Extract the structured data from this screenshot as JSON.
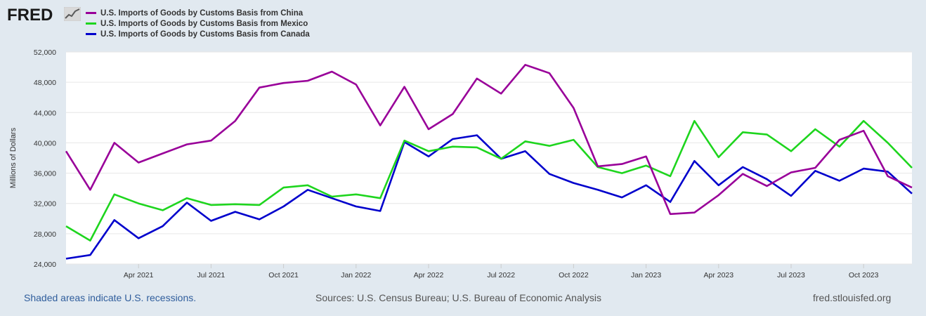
{
  "brand": {
    "logo_text": "FRED"
  },
  "legend": [
    {
      "label": "U.S. Imports of Goods by Customs Basis from China",
      "color": "#990099"
    },
    {
      "label": "U.S. Imports of Goods by Customs Basis from Mexico",
      "color": "#1ed51e"
    },
    {
      "label": "U.S. Imports of Goods by Customs Basis from Canada",
      "color": "#0000cc"
    }
  ],
  "footer": {
    "recessions_note": "Shaded areas indicate U.S. recessions.",
    "sources": "Sources: U.S. Census Bureau; U.S. Bureau of Economic Analysis",
    "site": "fred.stlouisfed.org"
  },
  "chart_data": {
    "type": "line",
    "title": "",
    "xlabel": "",
    "ylabel": "Millions of Dollars",
    "ylim": [
      24000,
      52000
    ],
    "yticks": [
      24000,
      28000,
      32000,
      36000,
      40000,
      44000,
      48000,
      52000
    ],
    "ytick_labels": [
      "24,000",
      "28,000",
      "32,000",
      "36,000",
      "40,000",
      "44,000",
      "48,000",
      "52,000"
    ],
    "x": [
      "2021-01",
      "2021-02",
      "2021-03",
      "2021-04",
      "2021-05",
      "2021-06",
      "2021-07",
      "2021-08",
      "2021-09",
      "2021-10",
      "2021-11",
      "2021-12",
      "2022-01",
      "2022-02",
      "2022-03",
      "2022-04",
      "2022-05",
      "2022-06",
      "2022-07",
      "2022-08",
      "2022-09",
      "2022-10",
      "2022-11",
      "2022-12",
      "2023-01",
      "2023-02",
      "2023-03",
      "2023-04",
      "2023-05",
      "2023-06",
      "2023-07",
      "2023-08",
      "2023-09",
      "2023-10",
      "2023-11",
      "2023-12"
    ],
    "xticks": [
      {
        "index": 3,
        "label": "Apr 2021"
      },
      {
        "index": 6,
        "label": "Jul 2021"
      },
      {
        "index": 9,
        "label": "Oct 2021"
      },
      {
        "index": 12,
        "label": "Jan 2022"
      },
      {
        "index": 15,
        "label": "Apr 2022"
      },
      {
        "index": 18,
        "label": "Jul 2022"
      },
      {
        "index": 21,
        "label": "Oct 2022"
      },
      {
        "index": 24,
        "label": "Jan 2023"
      },
      {
        "index": 27,
        "label": "Apr 2023"
      },
      {
        "index": 30,
        "label": "Jul 2023"
      },
      {
        "index": 33,
        "label": "Oct 2023"
      }
    ],
    "series": [
      {
        "name": "U.S. Imports of Goods by Customs Basis from China",
        "color": "#990099",
        "values": [
          38900,
          33800,
          40000,
          37400,
          38600,
          39800,
          40300,
          42900,
          47300,
          47900,
          48200,
          49400,
          47700,
          42300,
          47400,
          41800,
          43800,
          48500,
          46500,
          50300,
          49200,
          44600,
          36900,
          37200,
          38200,
          30600,
          30800,
          33100,
          35900,
          34300,
          36100,
          36700,
          40400,
          41600,
          35600,
          34100
        ]
      },
      {
        "name": "U.S. Imports of Goods by Customs Basis from Mexico",
        "color": "#1ed51e",
        "values": [
          29000,
          27100,
          33200,
          32000,
          31100,
          32700,
          31800,
          31900,
          31800,
          34100,
          34400,
          32900,
          33200,
          32700,
          40300,
          38900,
          39500,
          39400,
          37900,
          40200,
          39600,
          40400,
          36800,
          36000,
          37000,
          35600,
          42900,
          38100,
          41400,
          41100,
          38900,
          41800,
          39500,
          42900,
          40000,
          36700
        ]
      },
      {
        "name": "U.S. Imports of Goods by Customs Basis from Canada",
        "color": "#0000cc",
        "values": [
          24700,
          25200,
          29800,
          27400,
          29000,
          32100,
          29700,
          30900,
          29900,
          31600,
          33800,
          32700,
          31600,
          31000,
          40100,
          38200,
          40500,
          41000,
          37900,
          38900,
          35900,
          34700,
          33800,
          32800,
          34400,
          32200,
          37600,
          34400,
          36800,
          35200,
          33000,
          36300,
          35000,
          36600,
          36200,
          33300
        ]
      }
    ]
  }
}
